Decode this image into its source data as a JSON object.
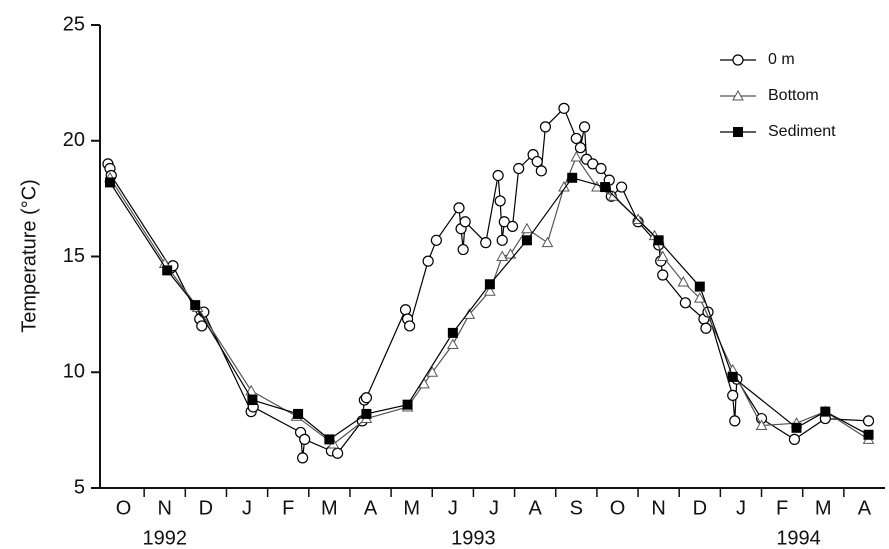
{
  "chart_data": {
    "type": "line",
    "y_label": "Temperature (°C)",
    "xlim": [
      0,
      19
    ],
    "xticks": [
      {
        "value": 0.5,
        "label": "O"
      },
      {
        "value": 1.5,
        "label": "N"
      },
      {
        "value": 2.5,
        "label": "D"
      },
      {
        "value": 3.5,
        "label": "J"
      },
      {
        "value": 4.5,
        "label": "F"
      },
      {
        "value": 5.5,
        "label": "M"
      },
      {
        "value": 6.5,
        "label": "A"
      },
      {
        "value": 7.5,
        "label": "M"
      },
      {
        "value": 8.5,
        "label": "J"
      },
      {
        "value": 9.5,
        "label": "J"
      },
      {
        "value": 10.5,
        "label": "A"
      },
      {
        "value": 11.5,
        "label": "S"
      },
      {
        "value": 12.5,
        "label": "O"
      },
      {
        "value": 13.5,
        "label": "N"
      },
      {
        "value": 14.5,
        "label": "D"
      },
      {
        "value": 15.5,
        "label": "J"
      },
      {
        "value": 16.5,
        "label": "F"
      },
      {
        "value": 17.5,
        "label": "M"
      },
      {
        "value": 18.5,
        "label": "A"
      }
    ],
    "xminorticks": [
      1,
      2,
      3,
      4,
      5,
      6,
      7,
      8,
      9,
      10,
      11,
      12,
      13,
      14,
      15,
      16,
      17,
      18
    ],
    "year_labels": [
      {
        "text": "1992",
        "x": 1.5
      },
      {
        "text": "1993",
        "x": 9
      },
      {
        "text": "1994",
        "x": 16.9
      }
    ],
    "ylim": [
      5,
      25
    ],
    "yticks": [
      5,
      10,
      15,
      20,
      25
    ],
    "legend": "upper right",
    "series": [
      {
        "name": "0 m",
        "marker": "circle",
        "color": "#000000",
        "x": [
          0.12,
          0.17,
          0.2,
          1.65,
          1.7,
          2.35,
          2.4,
          2.45,
          3.6,
          3.65,
          4.8,
          4.85,
          4.9,
          5.55,
          5.7,
          6.3,
          6.35,
          6.4,
          7.35,
          7.4,
          7.45,
          7.9,
          8.1,
          8.65,
          8.7,
          8.75,
          8.8,
          9.3,
          9.6,
          9.65,
          9.7,
          9.75,
          9.95,
          10.1,
          10.45,
          10.55,
          10.65,
          10.75,
          11.2,
          11.5,
          11.6,
          11.7,
          11.75,
          11.9,
          12.1,
          12.3,
          12.35,
          12.6,
          13.0,
          13.5,
          13.55,
          13.6,
          14.15,
          14.6,
          14.65,
          14.7,
          15.3,
          15.35,
          15.4,
          16.0,
          16.8,
          17.55,
          18.6
        ],
        "values": [
          19.0,
          18.8,
          18.5,
          14.5,
          14.6,
          12.3,
          12.0,
          12.6,
          8.3,
          8.5,
          7.4,
          6.3,
          7.1,
          6.6,
          6.5,
          7.9,
          8.8,
          8.9,
          12.7,
          12.3,
          12.0,
          14.8,
          15.7,
          17.1,
          16.2,
          15.3,
          16.5,
          15.6,
          18.5,
          17.4,
          15.7,
          16.5,
          16.3,
          18.8,
          19.4,
          19.1,
          18.7,
          20.6,
          21.4,
          20.1,
          19.7,
          20.6,
          19.2,
          19.0,
          18.8,
          18.3,
          17.6,
          18.0,
          16.5,
          15.5,
          14.8,
          14.2,
          13.0,
          12.3,
          11.9,
          12.6,
          9.0,
          7.9,
          9.7,
          8.0,
          7.1,
          8.0,
          7.9
        ]
      },
      {
        "name": "Bottom",
        "marker": "triangle",
        "color": "#555555",
        "x": [
          0.17,
          1.5,
          2.3,
          3.6,
          4.7,
          5.6,
          6.4,
          7.4,
          7.8,
          8.0,
          8.5,
          8.9,
          9.4,
          9.7,
          9.9,
          10.3,
          10.8,
          11.2,
          11.5,
          12.0,
          12.4,
          13.0,
          13.4,
          13.6,
          14.1,
          14.5,
          15.3,
          16.0,
          16.85,
          17.55,
          18.6
        ],
        "values": [
          18.4,
          14.7,
          12.8,
          9.2,
          8.1,
          6.9,
          8.0,
          8.5,
          9.5,
          10.0,
          11.2,
          12.5,
          13.5,
          15.0,
          15.1,
          16.2,
          15.6,
          18.0,
          19.3,
          18.0,
          17.6,
          16.6,
          15.9,
          15.0,
          13.9,
          13.2,
          10.1,
          7.7,
          7.8,
          8.3,
          7.1
        ]
      },
      {
        "name": "Sediment",
        "marker": "square",
        "color": "#000000",
        "x": [
          0.17,
          1.56,
          2.24,
          3.63,
          4.74,
          5.5,
          6.4,
          7.4,
          8.5,
          9.4,
          10.3,
          11.4,
          12.2,
          13.5,
          14.5,
          15.3,
          16.85,
          17.55,
          18.6
        ],
        "values": [
          18.2,
          14.4,
          12.9,
          8.8,
          8.2,
          7.1,
          8.2,
          8.6,
          11.7,
          13.8,
          15.7,
          18.4,
          18.0,
          15.7,
          13.7,
          9.8,
          7.6,
          8.3,
          7.3
        ]
      }
    ]
  }
}
